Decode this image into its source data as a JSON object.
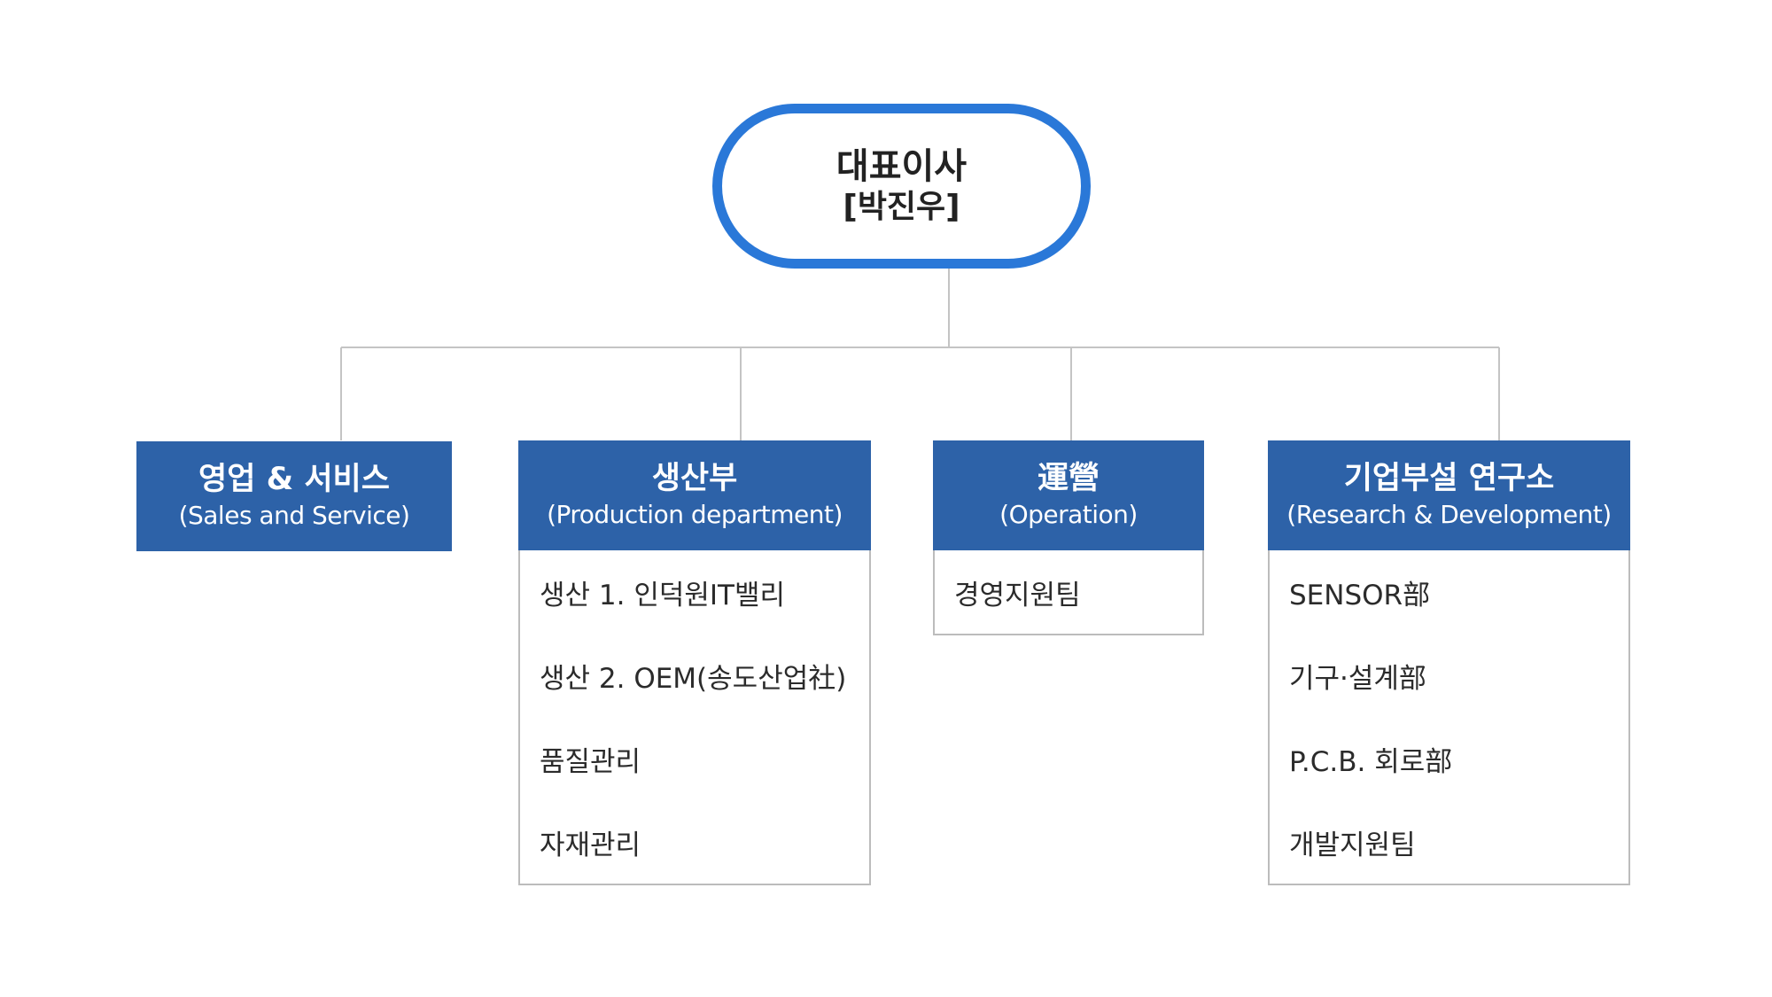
{
  "ceo": {
    "title": "대표이사",
    "name": "[박진우]"
  },
  "departments": [
    {
      "name": "영업 & 서비스",
      "eng": "(Sales and Service)",
      "items": []
    },
    {
      "name": "생산부",
      "eng": "(Production department)",
      "items": [
        "생산 1. 인덕원IT밸리",
        "생산 2. OEM(송도산업社)",
        "품질관리",
        "자재관리"
      ]
    },
    {
      "name": "運營",
      "eng": "(Operation)",
      "items": [
        "경영지원팀"
      ]
    },
    {
      "name": "기업부설 연구소",
      "eng": "(Research & Development)",
      "items": [
        "SENSOR部",
        "기구·설계部",
        "P.C.B. 회로部",
        "개발지원팀"
      ]
    }
  ],
  "colors": {
    "ceo_border": "#2a78d8",
    "header_bg": "#2d62a8",
    "line": "#c4c4c4"
  }
}
